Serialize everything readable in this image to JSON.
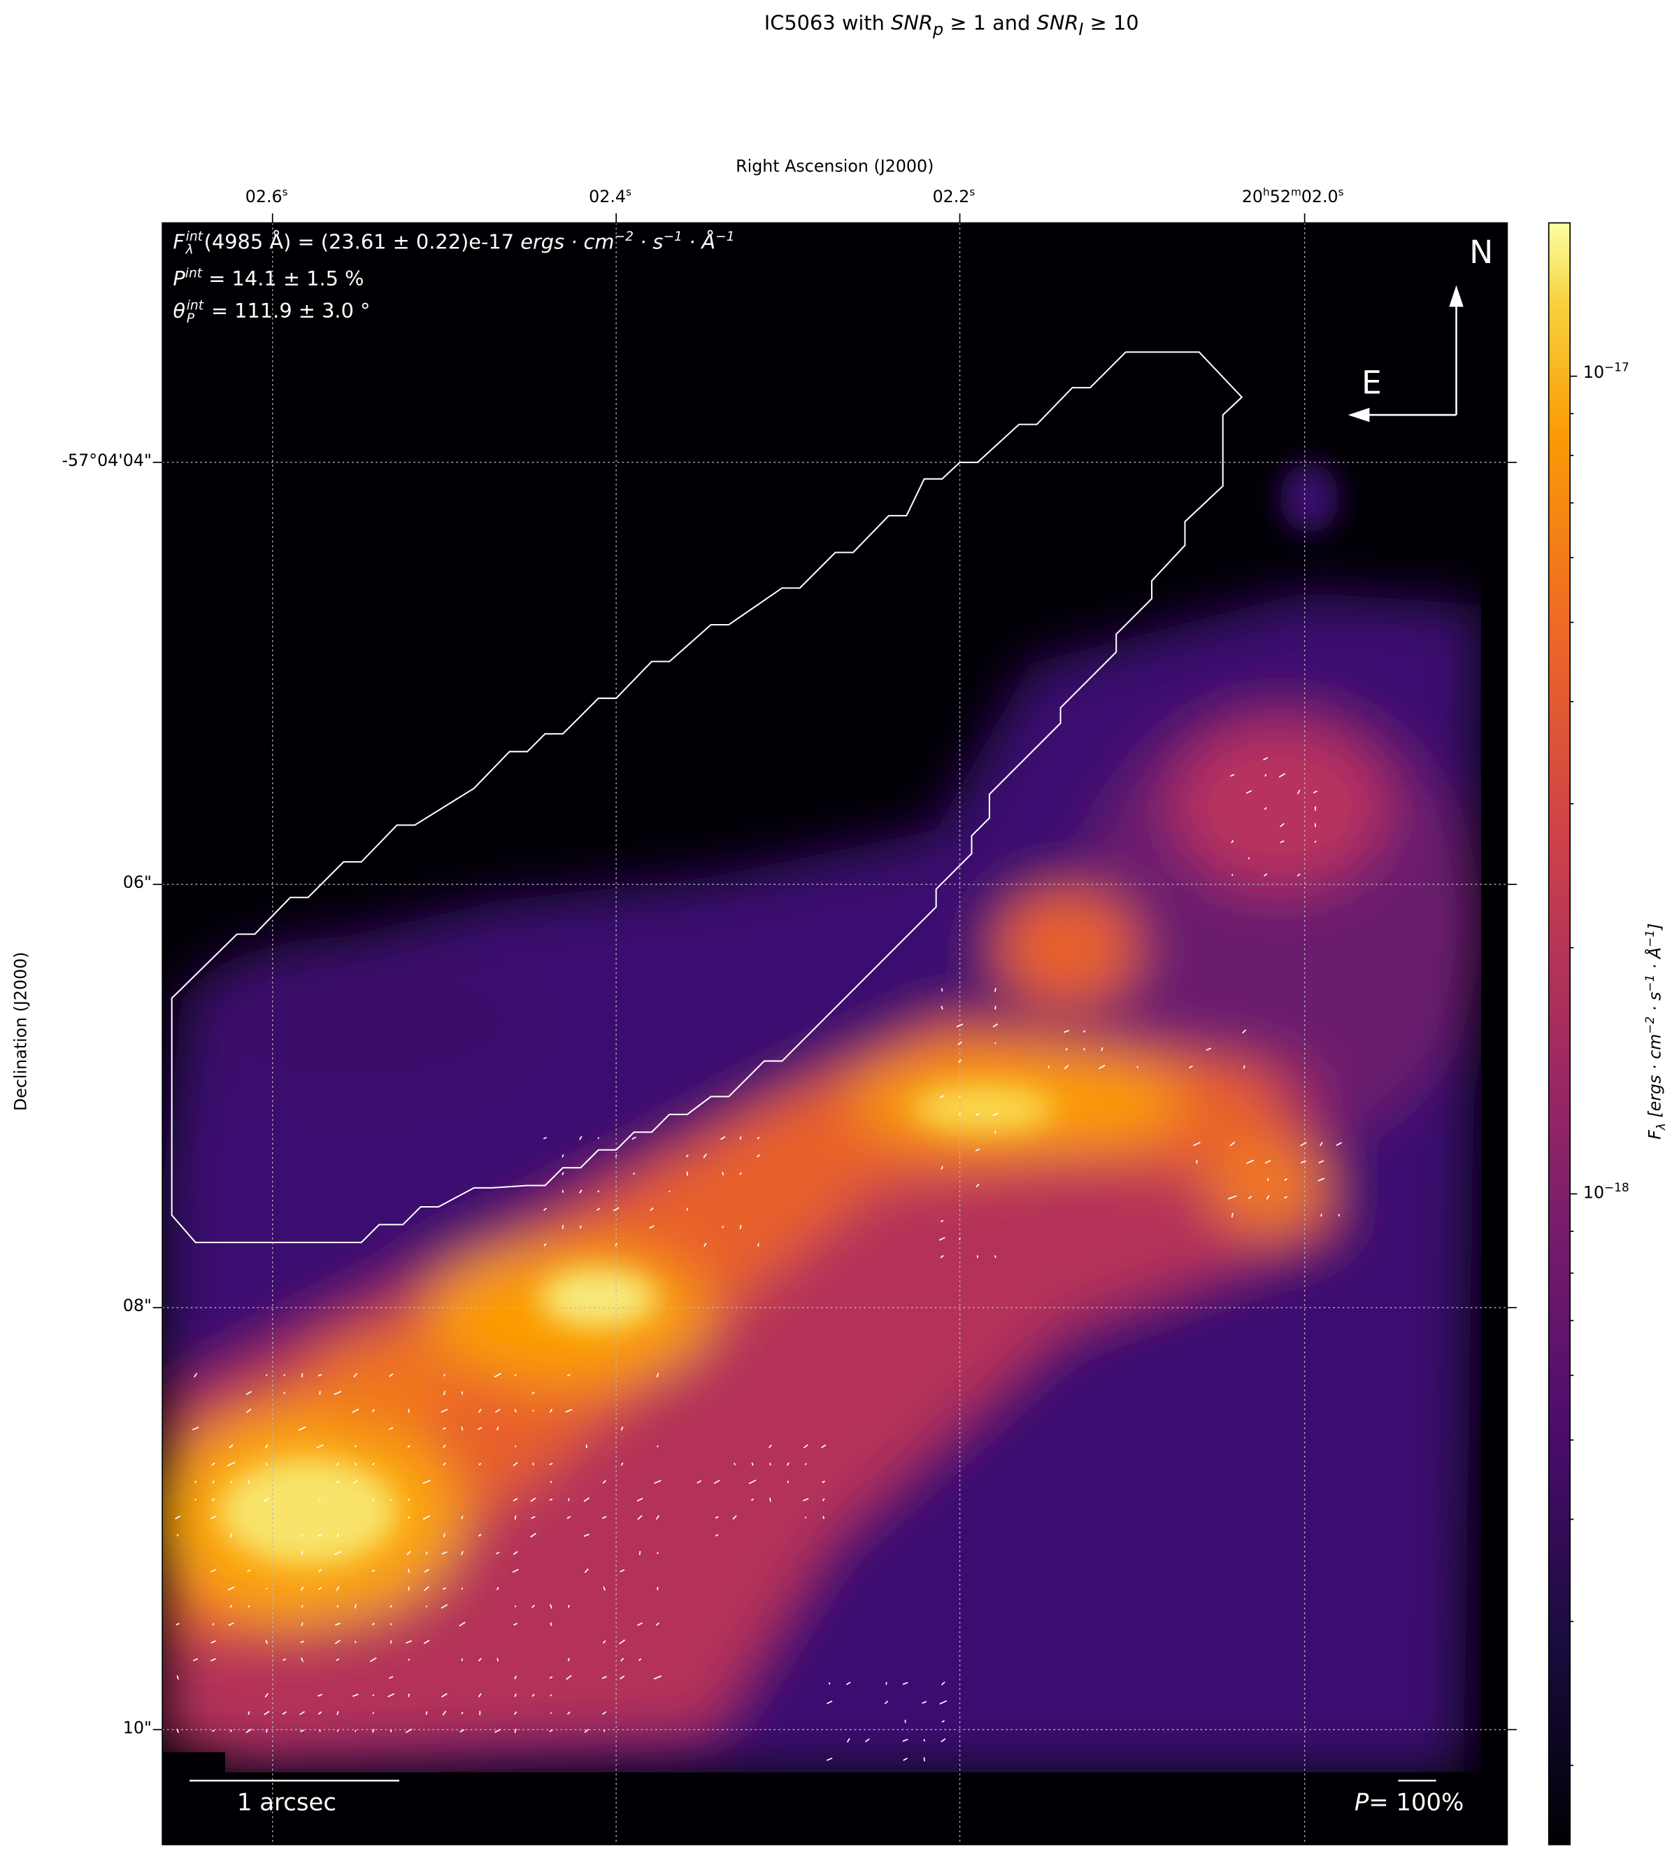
{
  "chart_data": {
    "type": "heatmap",
    "title": {
      "prefix": "IC5063 with ",
      "snr_p": "SNR",
      "snr_p_sub": "p",
      "mid": "≥ 1 and ",
      "snr_i": "SNR",
      "snr_i_sub": "I",
      "end": "≥ 10"
    },
    "xlabel": "Right Ascension (J2000)",
    "ylabel": "Declination (J2000)",
    "x_ticks": [
      {
        "label": "02.6",
        "sup": "s"
      },
      {
        "label": "02.4",
        "sup": "s"
      },
      {
        "label": "02.2",
        "sup": "s"
      },
      {
        "label": "20",
        "sup": "h",
        "label2": "52",
        "sup2": "m",
        "label3": "02.0",
        "sup3": "s"
      }
    ],
    "y_ticks": [
      "-57°04'04\"",
      "06\"",
      "08\"",
      "10\""
    ],
    "colorbar": {
      "scale": "log",
      "colormap": "inferno",
      "range": [
        1.6e-19,
        1.54e-17
      ],
      "ticks": [
        {
          "base": "10",
          "exp": "−17",
          "value": 1e-17
        },
        {
          "base": "10",
          "exp": "−18",
          "value": 1e-18
        }
      ],
      "label": {
        "main": "F",
        "sub": "λ",
        "rest": " [ergs · cm",
        "e1": "−2",
        "r2": " · s",
        "e2": "−1",
        "r3": " · Å",
        "e3": "−1",
        "r4": "]"
      }
    },
    "grid": true,
    "annotations": {
      "flux": {
        "sym": "F",
        "sup": "int",
        "sub": "λ",
        "text": "(4985 Å) = (23.61 ± 0.22)e-17 ",
        "units": "ergs · cm",
        "u1": "−2",
        "u2": " · s",
        "u2e": "−1",
        "u3": " · Å",
        "u3e": "−1"
      },
      "pol": {
        "sym": "P",
        "sup": "int",
        "text": " = 14.1 ± 1.5 %"
      },
      "angle": {
        "sym": "θ",
        "sup": "int",
        "sub": "P",
        "text": " = 111.9 ± 3.0 °"
      }
    },
    "compass": {
      "north": "N",
      "east": "E"
    },
    "scale_bar": "1 arcsec",
    "vector_scale": {
      "sym": "P",
      "text": "= 100%"
    },
    "contour_color": "#ffffff"
  }
}
